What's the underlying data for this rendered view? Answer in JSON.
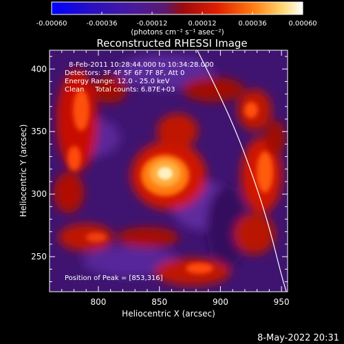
{
  "chart_data": {
    "type": "heatmap",
    "title": "Reconstructed RHESSI Image",
    "xlabel": "Heliocentric X (arcsec)",
    "ylabel": "Heliocentric Y (arcsec)",
    "xlim": [
      760,
      955
    ],
    "ylim": [
      222,
      415
    ],
    "xticks": [
      800,
      850,
      900,
      950
    ],
    "yticks": [
      250,
      300,
      350,
      400
    ],
    "colorbar": {
      "range": [
        -0.0006,
        0.0006
      ],
      "ticks": [
        "-0.00060",
        "-0.00036",
        "-0.00012",
        "0.00012",
        "0.00036",
        "0.00060"
      ],
      "tick_values": [
        -0.0006,
        -0.00036,
        -0.00012,
        0.00012,
        0.00036,
        0.0006
      ],
      "unit_label": "(photons cm⁻² s⁻¹ asec⁻²)",
      "colors": [
        "#0000ff",
        "#3a0b8c",
        "#6a2a8e",
        "#a01010",
        "#e03000",
        "#ff9a20",
        "#ffffff"
      ]
    },
    "annotations": [
      "8-Feb-2011 10:28:44.000 to 10:34:28.000",
      "Detectors: 3F 4F 5F 6F 7F 8F, Att 0",
      "Energy Range: 12.0 - 25.0 keV",
      "Clean     Total counts: 6.87E+03"
    ],
    "peak_label": "Position of Peak = [853,316]",
    "peak": [
      853,
      316
    ],
    "limb_curve": [
      [
        881,
        415
      ],
      [
        900,
        378
      ],
      [
        915,
        345
      ],
      [
        930,
        305
      ],
      [
        941,
        270
      ],
      [
        950,
        235
      ],
      [
        954,
        222
      ]
    ],
    "date_stamp": "8-May-2022 20:31"
  }
}
